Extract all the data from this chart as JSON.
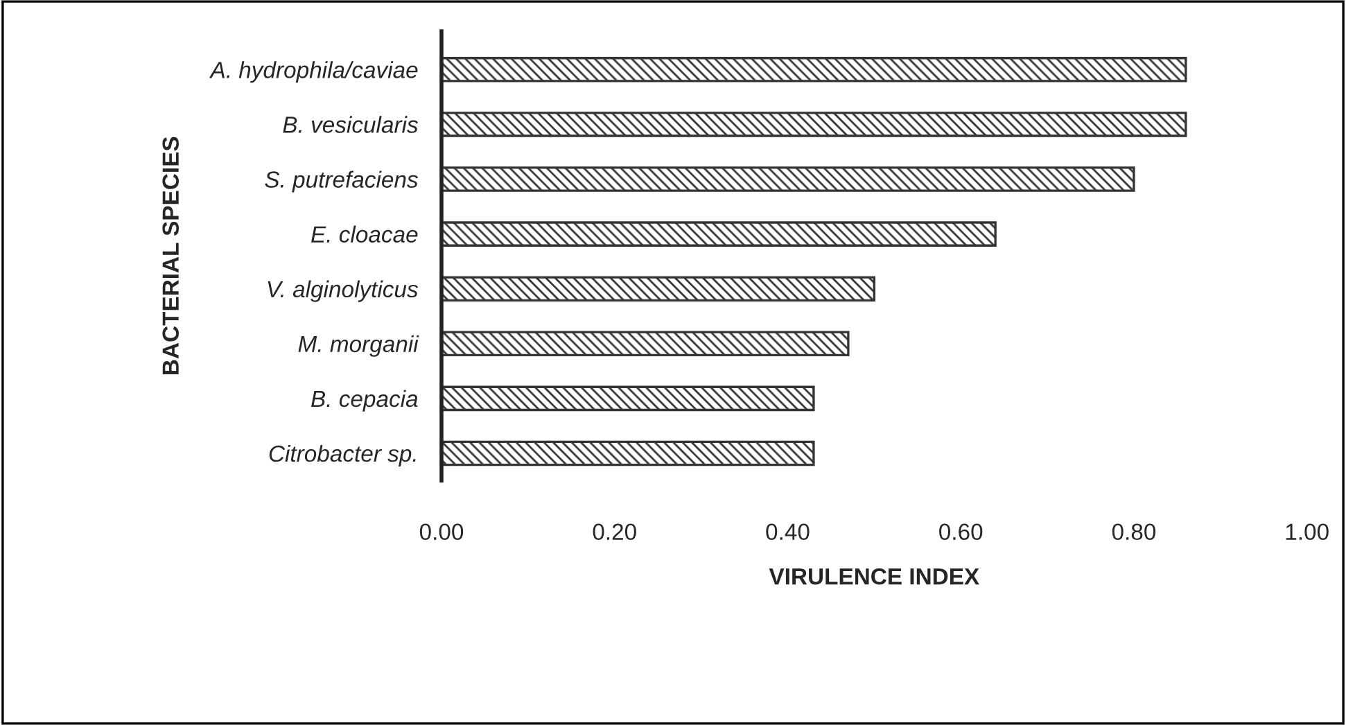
{
  "chart_data": {
    "type": "bar",
    "orientation": "horizontal",
    "categories": [
      "A. hydrophila/caviae",
      "B. vesicularis",
      "S. putrefaciens",
      "E. cloacae",
      "V. alginolyticus",
      "M. morganii",
      "B. cepacia",
      "Citrobacter sp."
    ],
    "values": [
      0.86,
      0.86,
      0.8,
      0.64,
      0.5,
      0.47,
      0.43,
      0.43
    ],
    "color": "#333333",
    "xlabel": "VIRULENCE INDEX",
    "ylabel": "BACTERIAL SPECIES",
    "xlim": [
      0,
      1
    ],
    "xticks": [
      {
        "value": 0,
        "label": "0.00"
      },
      {
        "value": 0.2,
        "label": "0.20"
      },
      {
        "value": 0.4,
        "label": "0.40"
      },
      {
        "value": 0.6,
        "label": "0.60"
      },
      {
        "value": 0.8,
        "label": "0.80"
      },
      {
        "value": 1.0,
        "label": "1.00"
      }
    ],
    "grid": false,
    "legend": false
  }
}
